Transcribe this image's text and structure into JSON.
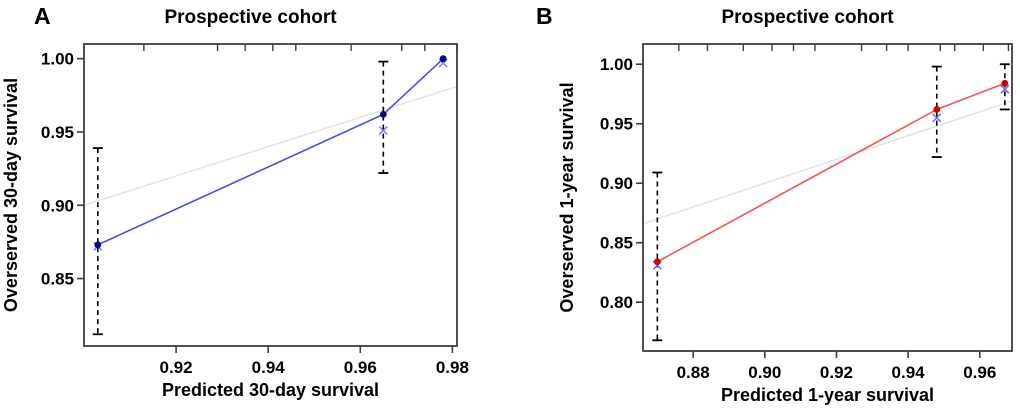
{
  "figure": {
    "background": "#ffffff"
  },
  "chart_data": [
    {
      "type": "line",
      "panel_label": "A",
      "title": "Prospective cohort",
      "xlabel": "Predicted 30-day survival",
      "ylabel": "Overserved 30-day survival",
      "xlim": [
        0.9,
        0.981
      ],
      "ylim": [
        0.804,
        1.01
      ],
      "xticks": [
        {
          "value": 0.92,
          "label": "0.92"
        },
        {
          "value": 0.94,
          "label": "0.94"
        },
        {
          "value": 0.96,
          "label": "0.96"
        },
        {
          "value": 0.98,
          "label": "0.98"
        }
      ],
      "yticks": [
        {
          "value": 1.0,
          "label": "1.00"
        },
        {
          "value": 0.95,
          "label": "0.95"
        },
        {
          "value": 0.9,
          "label": "0.90"
        },
        {
          "value": 0.85,
          "label": "0.85"
        }
      ],
      "identity_line": true,
      "grid": false,
      "colors": {
        "line": "#4a4aee",
        "dot": "#00008b",
        "x_marker": "#7a7af2",
        "identity": "#e2e2e2",
        "error_bar": "#000000",
        "axis": "#3d3d3d",
        "text": "#000000"
      },
      "points": [
        {
          "x": 0.903,
          "observed": 0.873,
          "corrected": 0.872,
          "ci_low": 0.812,
          "ci_high": 0.939
        },
        {
          "x": 0.965,
          "observed": 0.962,
          "corrected": 0.951,
          "ci_low": 0.922,
          "ci_high": 0.998
        },
        {
          "x": 0.978,
          "observed": 1.0,
          "corrected": 0.997,
          "ci_low": null,
          "ci_high": null
        }
      ],
      "rug_x": [
        0.913,
        0.929,
        0.935,
        0.941,
        0.946,
        0.958,
        0.969,
        0.974,
        0.981
      ]
    },
    {
      "type": "line",
      "panel_label": "B",
      "title": "Prospective cohort",
      "xlabel": "Predicted 1-year survival",
      "ylabel": "Overserved 1-year survival",
      "xlim": [
        0.866,
        0.969
      ],
      "ylim": [
        0.759,
        1.017
      ],
      "xticks": [
        {
          "value": 0.88,
          "label": "0.88"
        },
        {
          "value": 0.9,
          "label": "0.90"
        },
        {
          "value": 0.92,
          "label": "0.92"
        },
        {
          "value": 0.94,
          "label": "0.94"
        },
        {
          "value": 0.96,
          "label": "0.96"
        }
      ],
      "yticks": [
        {
          "value": 1.0,
          "label": "1.00"
        },
        {
          "value": 0.95,
          "label": "0.95"
        },
        {
          "value": 0.9,
          "label": "0.90"
        },
        {
          "value": 0.85,
          "label": "0.85"
        },
        {
          "value": 0.8,
          "label": "0.80"
        }
      ],
      "identity_line": true,
      "grid": false,
      "colors": {
        "line": "#f75555",
        "dot": "#d40000",
        "x_marker": "#6a6af0",
        "identity": "#e2e2e2",
        "error_bar": "#000000",
        "axis": "#3d3d3d",
        "text": "#000000"
      },
      "points": [
        {
          "x": 0.87,
          "observed": 0.834,
          "corrected": 0.831,
          "ci_low": 0.768,
          "ci_high": 0.909
        },
        {
          "x": 0.948,
          "observed": 0.962,
          "corrected": 0.955,
          "ci_low": 0.922,
          "ci_high": 0.998
        },
        {
          "x": 0.967,
          "observed": 0.984,
          "corrected": 0.979,
          "ci_low": 0.962,
          "ci_high": 1.0
        }
      ],
      "rug_x": [
        0.876,
        0.884,
        0.894,
        0.902,
        0.908,
        0.914,
        0.927,
        0.934,
        0.94,
        0.949,
        0.953,
        0.961,
        0.968
      ]
    }
  ]
}
